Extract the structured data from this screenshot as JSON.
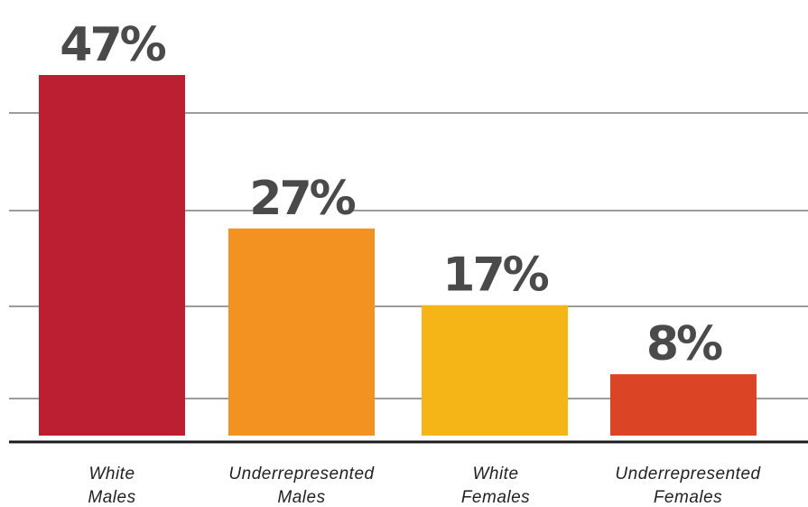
{
  "chart_data": {
    "type": "bar",
    "categories": [
      [
        "White",
        "Males"
      ],
      [
        "Underrepresented",
        "Males"
      ],
      [
        "White",
        "Females"
      ],
      [
        "Underrepresented",
        "Females"
      ]
    ],
    "values": [
      47,
      27,
      17,
      8
    ],
    "value_labels": [
      "47%",
      "27%",
      "17%",
      "8%"
    ],
    "colors": [
      "#bc1f32",
      "#f39221",
      "#f5b517",
      "#dc4426"
    ],
    "label_color": "#4a4a4a",
    "title": "",
    "xlabel": "",
    "ylabel": "",
    "ylim": [
      0,
      47
    ],
    "grid": true,
    "legend": "none"
  }
}
